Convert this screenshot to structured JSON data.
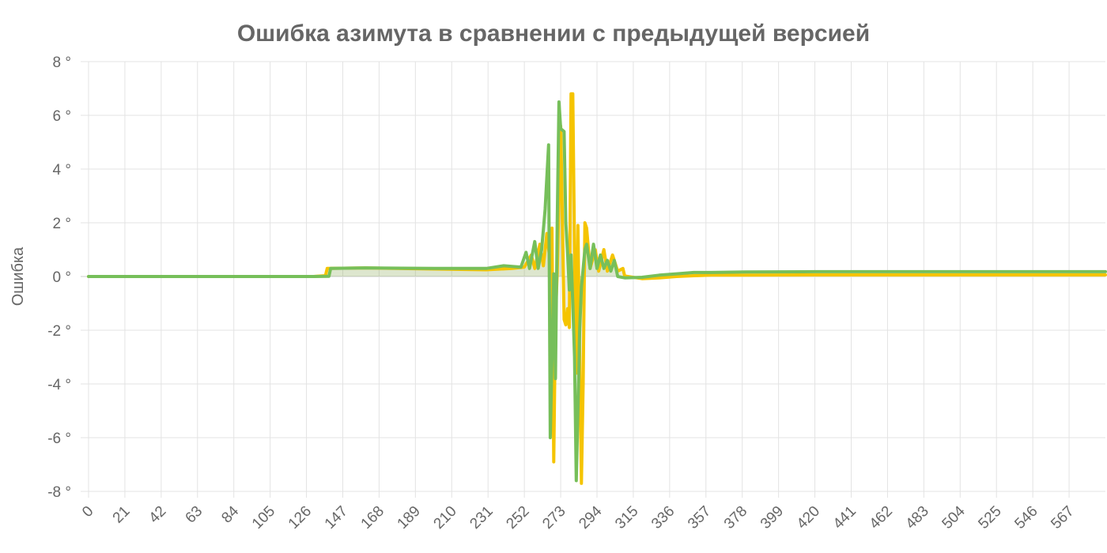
{
  "chart_data": {
    "type": "line",
    "title": "Ошибка азимута в сравнении с предыдущей версией",
    "ylabel": "Ошибка",
    "y_unit": "°",
    "ylim": [
      -8,
      8
    ],
    "y_ticks": [
      8,
      6,
      4,
      2,
      0,
      -2,
      -4,
      -6,
      -8
    ],
    "xlim": [
      0,
      588
    ],
    "x_ticks": [
      0,
      21,
      42,
      63,
      84,
      105,
      126,
      147,
      168,
      189,
      210,
      231,
      252,
      273,
      294,
      315,
      336,
      357,
      378,
      399,
      420,
      441,
      462,
      483,
      504,
      525,
      546,
      567
    ],
    "grid": true,
    "legend": "none",
    "series": [
      {
        "color": "#f5c400",
        "fill": "rgba(150,150,80,0.18)",
        "points": [
          [
            0,
            0
          ],
          [
            50,
            0
          ],
          [
            100,
            0
          ],
          [
            130,
            0
          ],
          [
            137,
            0.03
          ],
          [
            138,
            0.3
          ],
          [
            160,
            0.32
          ],
          [
            200,
            0.28
          ],
          [
            230,
            0.25
          ],
          [
            245,
            0.3
          ],
          [
            252,
            0.35
          ],
          [
            256,
            0.8
          ],
          [
            258,
            0.3
          ],
          [
            261,
            1.2
          ],
          [
            263,
            0.4
          ],
          [
            265,
            1.6
          ],
          [
            267,
            0.5
          ],
          [
            268,
            1.8
          ],
          [
            269,
            -6.9
          ],
          [
            270,
            -1.5
          ],
          [
            271,
            0.1
          ],
          [
            272,
            3.0
          ],
          [
            273,
            5.6
          ],
          [
            274,
            2.0
          ],
          [
            275,
            -1.6
          ],
          [
            276,
            -1.8
          ],
          [
            277,
            -1.2
          ],
          [
            278,
            -1.9
          ],
          [
            279,
            6.8
          ],
          [
            280,
            6.8
          ],
          [
            281,
            1.0
          ],
          [
            282,
            -3.6
          ],
          [
            283,
            1.9
          ],
          [
            284,
            -3.0
          ],
          [
            285,
            -7.7
          ],
          [
            286,
            -4.0
          ],
          [
            287,
            2.0
          ],
          [
            288,
            1.8
          ],
          [
            290,
            0.3
          ],
          [
            293,
            1.0
          ],
          [
            295,
            0.2
          ],
          [
            298,
            1.0
          ],
          [
            300,
            0.2
          ],
          [
            303,
            0.8
          ],
          [
            306,
            0.2
          ],
          [
            309,
            0.3
          ],
          [
            310,
            0.02
          ],
          [
            320,
            -0.08
          ],
          [
            330,
            -0.05
          ],
          [
            340,
            0.0
          ],
          [
            350,
            0.03
          ],
          [
            360,
            0.05
          ],
          [
            380,
            0.05
          ],
          [
            420,
            0.06
          ],
          [
            480,
            0.06
          ],
          [
            540,
            0.06
          ],
          [
            588,
            0.06
          ]
        ]
      },
      {
        "color": "#76bf5a",
        "fill": "rgba(118,191,90,0.12)",
        "points": [
          [
            0,
            0
          ],
          [
            50,
            0
          ],
          [
            100,
            0
          ],
          [
            130,
            0
          ],
          [
            139,
            0.01
          ],
          [
            140,
            0.3
          ],
          [
            160,
            0.32
          ],
          [
            200,
            0.3
          ],
          [
            230,
            0.3
          ],
          [
            240,
            0.4
          ],
          [
            250,
            0.35
          ],
          [
            253,
            0.9
          ],
          [
            255,
            0.3
          ],
          [
            258,
            1.3
          ],
          [
            260,
            0.3
          ],
          [
            262,
            1.0
          ],
          [
            264,
            2.5
          ],
          [
            266,
            4.9
          ],
          [
            267,
            -6.0
          ],
          [
            268,
            -3.0
          ],
          [
            269,
            0.1
          ],
          [
            270,
            -3.8
          ],
          [
            271,
            2.0
          ],
          [
            272,
            6.5
          ],
          [
            273,
            5.5
          ],
          [
            275,
            5.4
          ],
          [
            276,
            2.0
          ],
          [
            277,
            0.9
          ],
          [
            278,
            -0.5
          ],
          [
            279,
            0.8
          ],
          [
            280,
            -1.0
          ],
          [
            281,
            -3.0
          ],
          [
            282,
            -7.6
          ],
          [
            283,
            -5.0
          ],
          [
            284,
            -2.0
          ],
          [
            285,
            -0.4
          ],
          [
            287,
            1.0
          ],
          [
            288,
            1.2
          ],
          [
            290,
            0.3
          ],
          [
            292,
            1.2
          ],
          [
            294,
            0.3
          ],
          [
            296,
            0.8
          ],
          [
            298,
            0.3
          ],
          [
            300,
            0.6
          ],
          [
            302,
            0.2
          ],
          [
            304,
            0.6
          ],
          [
            306,
            0.0
          ],
          [
            310,
            -0.05
          ],
          [
            320,
            -0.03
          ],
          [
            330,
            0.05
          ],
          [
            340,
            0.1
          ],
          [
            350,
            0.15
          ],
          [
            360,
            0.15
          ],
          [
            380,
            0.17
          ],
          [
            420,
            0.18
          ],
          [
            480,
            0.18
          ],
          [
            540,
            0.18
          ],
          [
            588,
            0.18
          ]
        ]
      }
    ]
  }
}
